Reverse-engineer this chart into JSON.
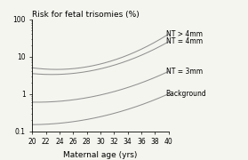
{
  "title": "Risk for fetal trisomies (%)",
  "xlabel": "Maternal age (yrs)",
  "xlim": [
    20,
    40
  ],
  "ylim": [
    0.1,
    100
  ],
  "xticks": [
    20,
    22,
    24,
    26,
    28,
    30,
    32,
    34,
    36,
    38,
    40
  ],
  "yticks": [
    0.1,
    1,
    10,
    100
  ],
  "curves": [
    {
      "label": "NT > 4mm",
      "y20": 5.0,
      "y40": 40.0,
      "curv": 0.35
    },
    {
      "label": "NT = 4mm",
      "y20": 3.5,
      "y40": 25.0,
      "curv": 0.3
    },
    {
      "label": "NT = 3mm",
      "y20": 0.6,
      "y40": 4.0,
      "curv": 0.22
    },
    {
      "label": "Background",
      "y20": 0.15,
      "y40": 1.0,
      "curv": 0.2
    }
  ],
  "line_color": "#909090",
  "bg_color": "#f5f5f0",
  "title_fontsize": 6.5,
  "label_fontsize": 6.5,
  "tick_fontsize": 5.5,
  "annot_fontsize": 5.5
}
